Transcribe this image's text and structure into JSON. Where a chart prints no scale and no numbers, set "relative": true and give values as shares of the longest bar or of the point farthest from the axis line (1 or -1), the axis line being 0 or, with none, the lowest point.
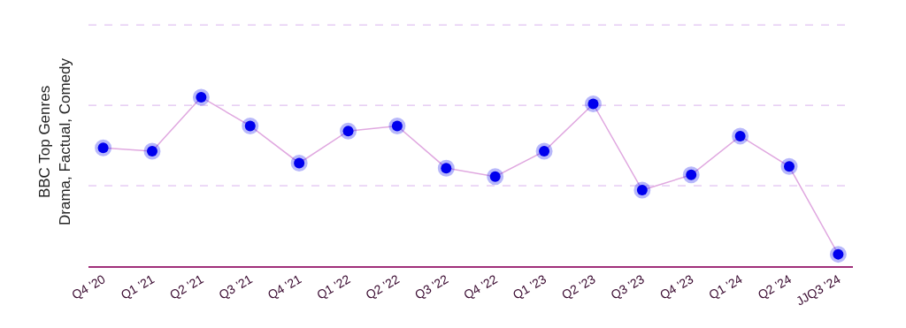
{
  "chart_data": {
    "type": "line",
    "relative": true,
    "ylabel": "BBC Top Genres\nDrama, Factual, Comedy",
    "categories": [
      "Q4 '20",
      "Q1 '21",
      "Q2 '21",
      "Q3 '21",
      "Q4 '21",
      "Q1 '22",
      "Q2 '22",
      "Q3 '22",
      "Q4 '22",
      "Q1 '23",
      "Q2 '23",
      "Q3 '23",
      "Q4 '23",
      "Q1 '24",
      "Q2 '24",
      "JJQ3 '24"
    ],
    "series": [
      {
        "color": "#0000ee",
        "values": [
          0.7,
          0.68,
          1.0,
          0.83,
          0.61,
          0.8,
          0.83,
          0.58,
          0.53,
          0.68,
          0.96,
          0.45,
          0.54,
          0.77,
          0.59,
          0.07
        ]
      }
    ],
    "marker": "circle",
    "line_style": "solid",
    "ref_lines": [
      {
        "axis": "y",
        "value": 0.476,
        "color": "#d9b3ee",
        "line_style": "dashed"
      },
      {
        "axis": "y",
        "value": 0.952,
        "color": "#d9b3ee",
        "line_style": "dashed"
      },
      {
        "axis": "y",
        "value": 1.428,
        "color": "#d9b3ee",
        "line_style": "dashed"
      }
    ]
  }
}
